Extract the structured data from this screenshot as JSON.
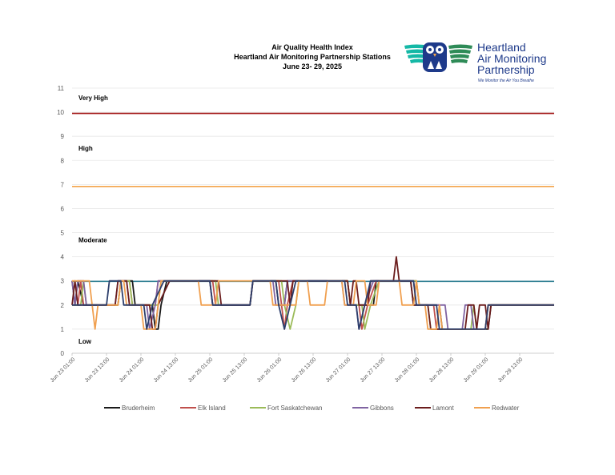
{
  "chart_data": {
    "type": "line",
    "title": [
      "Air Quality Health Index",
      "Heartland Air Monitoring Partnership Stations",
      "June 23- 29, 2025"
    ],
    "ylim": [
      0,
      11
    ],
    "yticks": [
      "0",
      "1",
      "2",
      "3",
      "4",
      "5",
      "6",
      "7",
      "8",
      "9",
      "10",
      "11"
    ],
    "bands": [
      {
        "label": "Very High",
        "y": 10.6
      },
      {
        "label": "High",
        "y": 8.5
      },
      {
        "label": "Moderate",
        "y": 4.7
      },
      {
        "label": "Low",
        "y": 0.5
      }
    ],
    "thresholds": [
      {
        "value": 9.95,
        "color": "#a31515"
      },
      {
        "value": 6.92,
        "color": "#f4a54c"
      },
      {
        "value": 2.98,
        "color": "#2e7f92"
      }
    ],
    "x_labels": [
      "Jun 23 01:00",
      "Jun 23 13:00",
      "Jun 24 01:00",
      "Jun 24 13:00",
      "Jun 25 01:00",
      "Jun 25 13:00",
      "Jun 26 01:00",
      "Jun 26 13:00",
      "Jun 27 01:00",
      "Jun 27 13:00",
      "Jun 28 01:00",
      "Jun 28 13:00",
      "Jun 29 01:00",
      "Jun 29 13:00"
    ],
    "x_label_positions": [
      0,
      12,
      24,
      36,
      48,
      60,
      72,
      84,
      96,
      108,
      120,
      132,
      144,
      156
    ],
    "x_range": [
      0,
      168
    ],
    "series": [
      {
        "name": "Bruderheim",
        "color": "#1a1a1a",
        "points": [
          [
            0,
            3
          ],
          [
            1,
            2
          ],
          [
            2,
            3
          ],
          [
            4,
            2
          ],
          [
            16,
            2
          ],
          [
            17,
            3
          ],
          [
            21,
            3
          ],
          [
            22,
            2
          ],
          [
            28,
            2
          ],
          [
            29,
            1
          ],
          [
            30,
            1
          ],
          [
            31,
            2
          ],
          [
            33,
            3
          ],
          [
            48,
            3
          ],
          [
            49,
            2
          ],
          [
            62,
            2
          ],
          [
            63,
            3
          ],
          [
            71,
            3
          ],
          [
            72,
            2
          ],
          [
            74,
            2
          ],
          [
            75,
            3
          ],
          [
            96,
            3
          ],
          [
            97,
            2
          ],
          [
            105,
            2
          ],
          [
            106,
            3
          ],
          [
            118,
            3
          ],
          [
            119,
            2
          ],
          [
            128,
            2
          ],
          [
            129,
            1
          ],
          [
            145,
            1
          ],
          [
            146,
            2
          ],
          [
            168,
            2
          ]
        ]
      },
      {
        "name": "Elk Island",
        "color": "#c0504d",
        "points": [
          [
            0,
            2
          ],
          [
            2,
            2
          ],
          [
            3,
            3
          ],
          [
            4,
            2
          ],
          [
            16,
            2
          ],
          [
            17,
            3
          ],
          [
            20,
            3
          ],
          [
            21,
            2
          ],
          [
            29,
            2
          ],
          [
            30,
            3
          ],
          [
            49,
            3
          ],
          [
            50,
            2
          ],
          [
            62,
            2
          ],
          [
            63,
            3
          ],
          [
            72,
            3
          ],
          [
            73,
            2
          ],
          [
            74,
            1
          ],
          [
            75,
            2
          ],
          [
            77,
            3
          ],
          [
            96,
            3
          ],
          [
            97,
            2
          ],
          [
            100,
            2
          ],
          [
            101,
            1
          ],
          [
            103,
            2
          ],
          [
            106,
            3
          ],
          [
            120,
            3
          ],
          [
            121,
            2
          ],
          [
            126,
            2
          ],
          [
            127,
            1
          ],
          [
            144,
            1
          ],
          [
            145,
            2
          ],
          [
            168,
            2
          ]
        ]
      },
      {
        "name": "Fort Saskatchewan",
        "color": "#9bbb59",
        "points": [
          [
            0,
            2
          ],
          [
            3,
            2
          ],
          [
            4,
            3
          ],
          [
            5,
            2
          ],
          [
            16,
            2
          ],
          [
            17,
            3
          ],
          [
            20,
            3
          ],
          [
            21,
            2
          ],
          [
            30,
            2
          ],
          [
            31,
            3
          ],
          [
            50,
            3
          ],
          [
            51,
            2
          ],
          [
            62,
            2
          ],
          [
            63,
            3
          ],
          [
            73,
            3
          ],
          [
            74,
            2
          ],
          [
            76,
            1
          ],
          [
            78,
            2
          ],
          [
            79,
            3
          ],
          [
            96,
            3
          ],
          [
            97,
            2
          ],
          [
            101,
            2
          ],
          [
            102,
            1
          ],
          [
            104,
            2
          ],
          [
            107,
            3
          ],
          [
            120,
            3
          ],
          [
            121,
            2
          ],
          [
            124,
            2
          ],
          [
            125,
            1
          ],
          [
            139,
            1
          ],
          [
            140,
            2
          ],
          [
            141,
            1
          ],
          [
            144,
            1
          ],
          [
            145,
            2
          ],
          [
            168,
            2
          ]
        ]
      },
      {
        "name": "Gibbons",
        "color": "#8064a2",
        "points": [
          [
            0,
            3
          ],
          [
            1,
            2
          ],
          [
            2,
            3
          ],
          [
            4,
            3
          ],
          [
            5,
            2
          ],
          [
            15,
            2
          ],
          [
            16,
            3
          ],
          [
            19,
            3
          ],
          [
            20,
            2
          ],
          [
            26,
            2
          ],
          [
            27,
            1
          ],
          [
            29,
            2
          ],
          [
            30,
            3
          ],
          [
            48,
            3
          ],
          [
            49,
            2
          ],
          [
            62,
            2
          ],
          [
            63,
            3
          ],
          [
            70,
            3
          ],
          [
            71,
            2
          ],
          [
            74,
            2
          ],
          [
            75,
            3
          ],
          [
            94,
            3
          ],
          [
            95,
            2
          ],
          [
            99,
            2
          ],
          [
            100,
            1
          ],
          [
            102,
            2
          ],
          [
            105,
            3
          ],
          [
            119,
            3
          ],
          [
            120,
            2
          ],
          [
            130,
            2
          ],
          [
            131,
            1
          ],
          [
            136,
            1
          ],
          [
            137,
            2
          ],
          [
            139,
            2
          ],
          [
            140,
            1
          ],
          [
            144,
            1
          ],
          [
            145,
            2
          ],
          [
            168,
            2
          ]
        ]
      },
      {
        "name": "Lamont",
        "color": "#6b1d1d",
        "points": [
          [
            0,
            2
          ],
          [
            1,
            3
          ],
          [
            2,
            2
          ],
          [
            15,
            2
          ],
          [
            16,
            3
          ],
          [
            19,
            3
          ],
          [
            20,
            2
          ],
          [
            27,
            2
          ],
          [
            28,
            1
          ],
          [
            29,
            1
          ],
          [
            30,
            2
          ],
          [
            34,
            3
          ],
          [
            51,
            3
          ],
          [
            52,
            2
          ],
          [
            62,
            2
          ],
          [
            63,
            3
          ],
          [
            75,
            3
          ],
          [
            76,
            2
          ],
          [
            77,
            3
          ],
          [
            96,
            3
          ],
          [
            97,
            2
          ],
          [
            98,
            3
          ],
          [
            99,
            3
          ],
          [
            100,
            2
          ],
          [
            103,
            2
          ],
          [
            104,
            3
          ],
          [
            112,
            3
          ],
          [
            113,
            4
          ],
          [
            114,
            3
          ],
          [
            118,
            3
          ],
          [
            119,
            2
          ],
          [
            124,
            2
          ],
          [
            125,
            1
          ],
          [
            137,
            1
          ],
          [
            138,
            2
          ],
          [
            140,
            2
          ],
          [
            141,
            1
          ],
          [
            142,
            2
          ],
          [
            144,
            2
          ],
          [
            145,
            1
          ],
          [
            146,
            2
          ],
          [
            168,
            2
          ]
        ]
      },
      {
        "name": "Redwater",
        "color": "#f0a050",
        "points": [
          [
            0,
            3
          ],
          [
            6,
            3
          ],
          [
            7,
            2
          ],
          [
            8,
            1
          ],
          [
            9,
            2
          ],
          [
            16,
            2
          ],
          [
            17,
            3
          ],
          [
            18,
            3
          ],
          [
            19,
            2
          ],
          [
            24,
            2
          ],
          [
            25,
            1
          ],
          [
            29,
            1
          ],
          [
            30,
            2
          ],
          [
            31,
            3
          ],
          [
            44,
            3
          ],
          [
            45,
            2
          ],
          [
            50,
            2
          ],
          [
            51,
            3
          ],
          [
            69,
            3
          ],
          [
            70,
            2
          ],
          [
            78,
            2
          ],
          [
            79,
            3
          ],
          [
            82,
            3
          ],
          [
            83,
            2
          ],
          [
            88,
            2
          ],
          [
            89,
            3
          ],
          [
            94,
            3
          ],
          [
            95,
            2
          ],
          [
            98,
            2
          ],
          [
            99,
            3
          ],
          [
            102,
            3
          ],
          [
            103,
            2
          ],
          [
            106,
            2
          ],
          [
            107,
            3
          ],
          [
            114,
            3
          ],
          [
            115,
            2
          ],
          [
            119,
            2
          ],
          [
            120,
            3
          ],
          [
            121,
            2
          ],
          [
            123,
            2
          ],
          [
            124,
            1
          ],
          [
            127,
            1
          ],
          [
            128,
            2
          ],
          [
            129,
            1
          ],
          [
            144,
            1
          ],
          [
            145,
            2
          ],
          [
            168,
            2
          ]
        ]
      },
      {
        "name": "",
        "color": "#2c3e6b",
        "points": [
          [
            0,
            2
          ],
          [
            12,
            2
          ],
          [
            13,
            3
          ],
          [
            17,
            3
          ],
          [
            18,
            2
          ],
          [
            25,
            2
          ],
          [
            26,
            1
          ],
          [
            28,
            2
          ],
          [
            32,
            3
          ],
          [
            48,
            3
          ],
          [
            49,
            2
          ],
          [
            62,
            2
          ],
          [
            63,
            3
          ],
          [
            71,
            3
          ],
          [
            72,
            2
          ],
          [
            74,
            1
          ],
          [
            76,
            2
          ],
          [
            78,
            3
          ],
          [
            95,
            3
          ],
          [
            96,
            2
          ],
          [
            99,
            2
          ],
          [
            100,
            1
          ],
          [
            102,
            2
          ],
          [
            104,
            3
          ],
          [
            119,
            3
          ],
          [
            120,
            2
          ],
          [
            127,
            2
          ],
          [
            128,
            1
          ],
          [
            144,
            1
          ],
          [
            145,
            2
          ],
          [
            168,
            2
          ]
        ]
      }
    ],
    "legend": [
      "Bruderheim",
      "Elk Island",
      "Fort Saskatchewan",
      "Gibbons",
      "Lamont",
      "Redwater"
    ],
    "grid": true,
    "legend_position": "bottom"
  },
  "logo": {
    "name_lines": [
      "Heartland",
      "Air Monitoring",
      "Partnership"
    ],
    "tagline": "We Monitor the Air You Breathe"
  }
}
